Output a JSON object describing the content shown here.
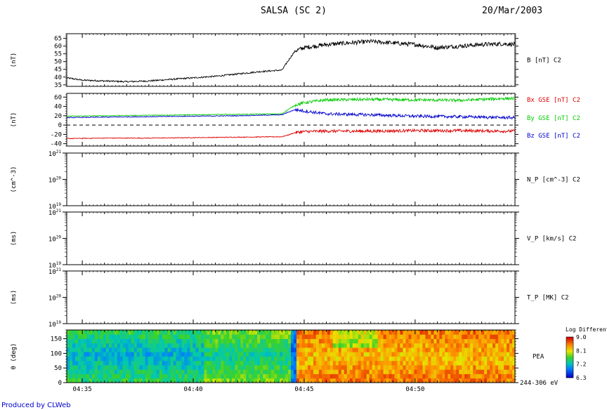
{
  "header": {
    "title": "SALSA (SC 2)",
    "date": "20/Mar/2003"
  },
  "footer": {
    "credit": "Produced by CLWeb"
  },
  "chart_data": [
    {
      "type": "line",
      "panel": "B magnitude",
      "ylabel": "(nT)",
      "series_label": "B [nT] C2",
      "ylim": [
        34,
        68
      ],
      "yticks": [
        35,
        40,
        45,
        50,
        55,
        60,
        65
      ],
      "color": "#000000",
      "x": [
        "04:34.3",
        "04:35",
        "04:36",
        "04:37",
        "04:38",
        "04:39",
        "04:40",
        "04:41",
        "04:42",
        "04:43",
        "04:44",
        "04:44.3",
        "04:44.6",
        "04:45",
        "04:46",
        "04:47",
        "04:48",
        "04:49",
        "04:50",
        "04:51",
        "04:52",
        "04:53",
        "04:54",
        "04:54.5"
      ],
      "values": [
        39.5,
        38,
        37.5,
        37,
        37.5,
        38.5,
        39.5,
        40.5,
        42,
        43.5,
        44.5,
        51,
        57,
        59,
        61,
        62,
        63,
        62,
        61,
        59,
        60,
        61,
        61.5,
        61
      ]
    },
    {
      "type": "line",
      "panel": "B GSE components",
      "ylabel": "(nT)",
      "ylim": [
        -45,
        68
      ],
      "yticks": [
        -40,
        -20,
        0,
        20,
        40,
        60
      ],
      "zero_line": "dashed",
      "x": [
        "04:34.3",
        "04:36",
        "04:38",
        "04:40",
        "04:42",
        "04:44",
        "04:44.3",
        "04:44.6",
        "04:45",
        "04:46",
        "04:48",
        "04:50",
        "04:52",
        "04:54",
        "04:54.5"
      ],
      "series": [
        {
          "name": "Bx GSE [nT] C2",
          "color": "#dd0000",
          "values": [
            -29,
            -28,
            -28,
            -27,
            -26,
            -25,
            -21,
            -16,
            -14,
            -13,
            -13,
            -12,
            -12,
            -13,
            -13
          ]
        },
        {
          "name": "By GSE [nT] C2",
          "color": "#00cc00",
          "values": [
            19,
            20,
            21,
            22,
            23,
            24,
            34,
            43,
            48,
            54,
            55,
            54,
            53,
            57,
            57
          ]
        },
        {
          "name": "Bz GSE [nT] C2",
          "color": "#0000cc",
          "values": [
            16,
            17,
            18,
            19,
            20,
            22,
            28,
            33,
            30,
            24,
            22,
            19,
            18,
            16,
            16
          ]
        }
      ]
    },
    {
      "type": "line",
      "panel": "proton density",
      "ylabel": "(cm^-3)",
      "series_label": "N_P [cm^-3] C2",
      "ylim": [
        1e+19,
        1e+21
      ],
      "scale": "log",
      "yticks": [
        "10^21",
        "10^20",
        "10^19"
      ],
      "values": []
    },
    {
      "type": "line",
      "panel": "proton velocity",
      "ylabel": "(ms)",
      "series_label": "V_P [km/s] C2",
      "ylim": [
        1e+19,
        1e+21
      ],
      "scale": "log",
      "yticks": [
        "10^21",
        "10^20",
        "10^19"
      ],
      "values": []
    },
    {
      "type": "line",
      "panel": "proton temperature",
      "ylabel": "(ms)",
      "series_label": "T_P [MK] C2",
      "ylim": [
        1e+19,
        1e+21
      ],
      "scale": "log",
      "yticks": [
        "10^21",
        "10^20",
        "10^19"
      ],
      "values": []
    },
    {
      "type": "heatmap",
      "panel": "PEA pitch angle",
      "ylabel": "θ (deg)",
      "series_label": "PEA",
      "energy_label": "244-306 eV",
      "ylim": [
        0,
        180
      ],
      "yticks": [
        0,
        50,
        100,
        150
      ],
      "colorbar": {
        "title": "Log Differential",
        "ticks": [
          9.0,
          8.1,
          7.2,
          6.3
        ],
        "tick_labels": [
          "9.0",
          "8.1",
          "7.2",
          "6.3"
        ],
        "range": [
          6.3,
          9.0
        ]
      },
      "xlabels": [
        "04:35",
        "04:40",
        "04:45",
        "04:50"
      ]
    }
  ]
}
